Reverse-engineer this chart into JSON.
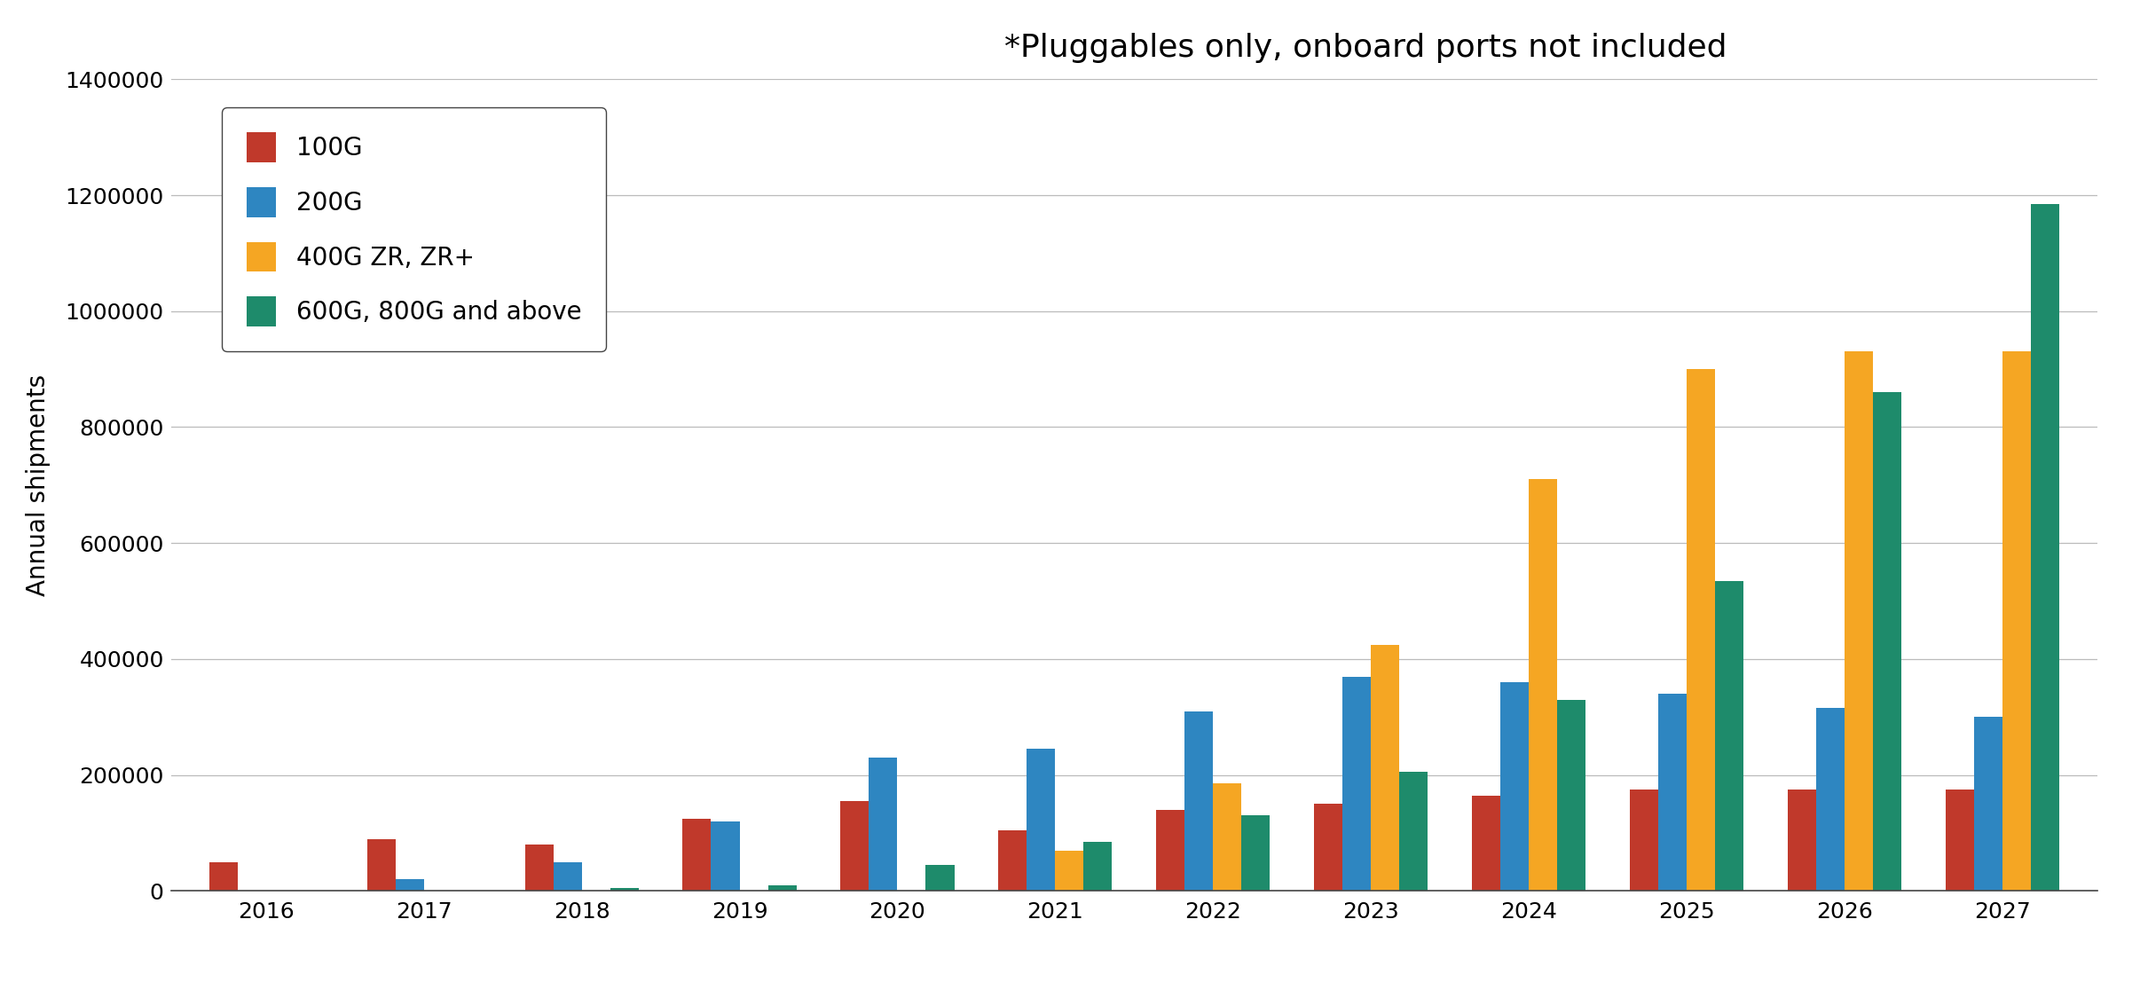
{
  "years": [
    2016,
    2017,
    2018,
    2019,
    2020,
    2021,
    2022,
    2023,
    2024,
    2025,
    2026,
    2027
  ],
  "series": {
    "100G": [
      50000,
      90000,
      80000,
      125000,
      155000,
      105000,
      140000,
      150000,
      165000,
      175000,
      175000,
      175000
    ],
    "200G": [
      0,
      20000,
      50000,
      120000,
      230000,
      245000,
      310000,
      370000,
      360000,
      340000,
      315000,
      300000
    ],
    "400G ZR, ZR+": [
      0,
      0,
      0,
      0,
      0,
      70000,
      185000,
      425000,
      710000,
      900000,
      930000,
      930000
    ],
    "600G, 800G and above": [
      0,
      0,
      5000,
      10000,
      45000,
      85000,
      130000,
      205000,
      330000,
      535000,
      860000,
      1185000
    ]
  },
  "colors": {
    "100G": "#C0392B",
    "200G": "#2E86C1",
    "400G ZR, ZR+": "#F5A623",
    "600G, 800G and above": "#1E8B6B"
  },
  "title": "*Pluggables only, onboard ports not included",
  "ylabel": "Annual shipments",
  "ylim": [
    0,
    1400000
  ],
  "yticks": [
    0,
    200000,
    400000,
    600000,
    800000,
    1000000,
    1200000,
    1400000
  ],
  "background_color": "#ffffff",
  "grid_color": "#bbbbbb",
  "title_fontsize": 26,
  "label_fontsize": 20,
  "tick_fontsize": 18,
  "legend_fontsize": 20,
  "bar_width": 0.18
}
